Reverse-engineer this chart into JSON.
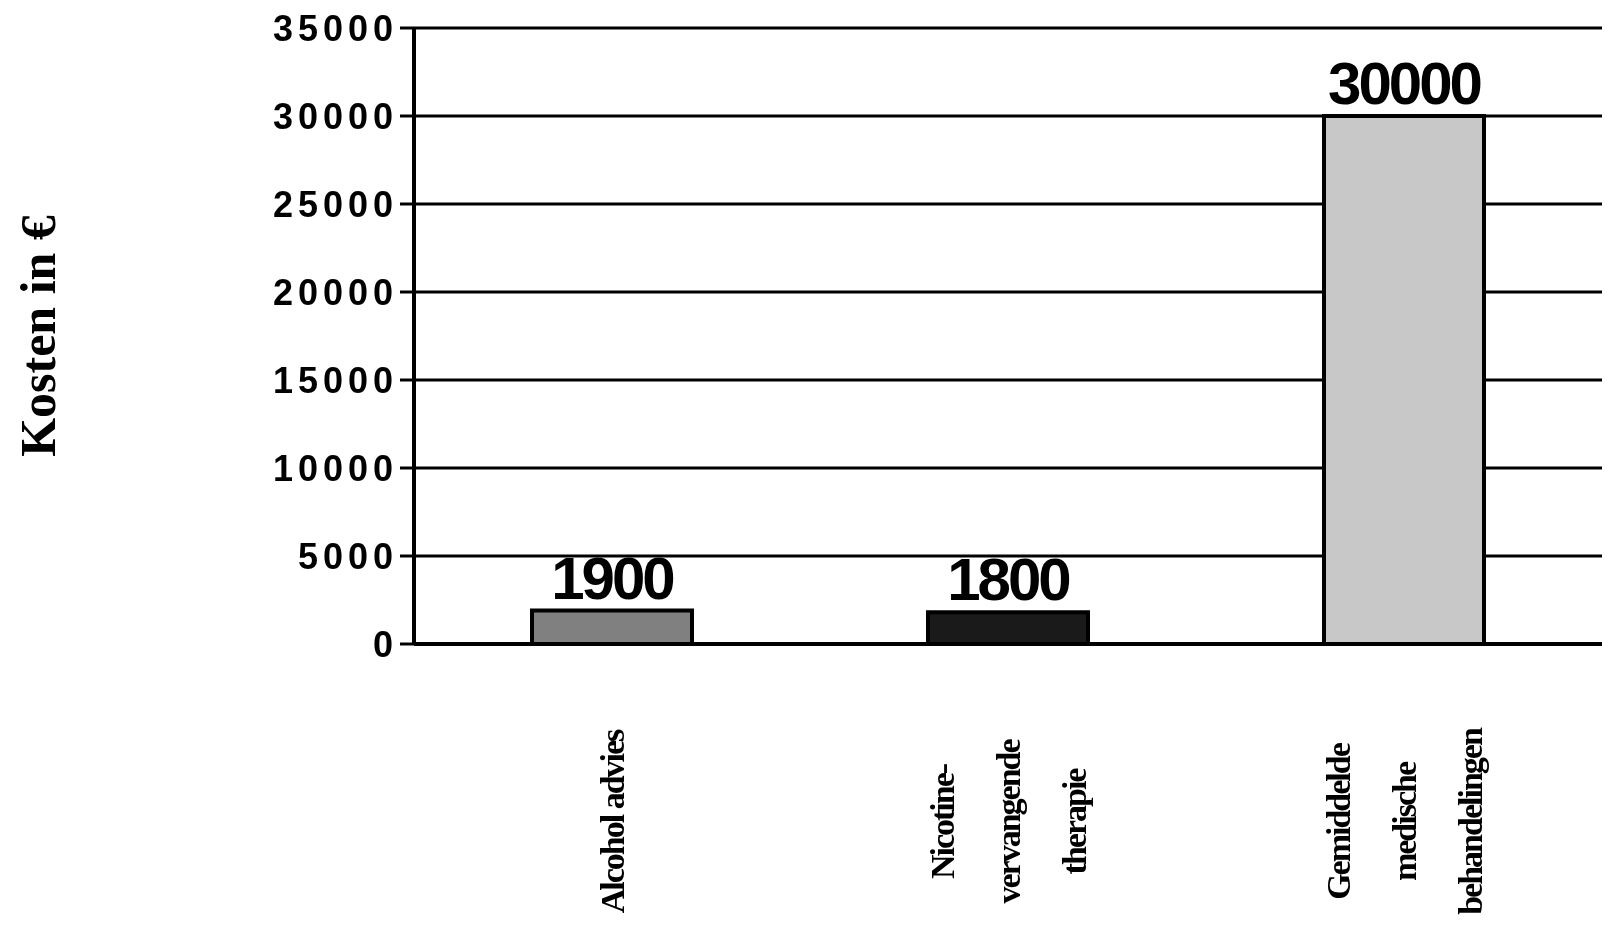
{
  "chart_data": {
    "type": "bar",
    "ylabel": "Kosten in €",
    "categories": [
      "Alcohol advies",
      "Nicotine-vervangende therapie",
      "Gemiddelde medische behandelingen"
    ],
    "values": [
      1900,
      1800,
      30000
    ],
    "colors": [
      "#808080",
      "#1a1a1a",
      "#c8c8c8"
    ],
    "ylim": [
      0,
      35000
    ],
    "yticks": [
      0,
      5000,
      10000,
      15000,
      20000,
      25000,
      30000,
      35000
    ],
    "grid": "y",
    "data_labels": true
  }
}
